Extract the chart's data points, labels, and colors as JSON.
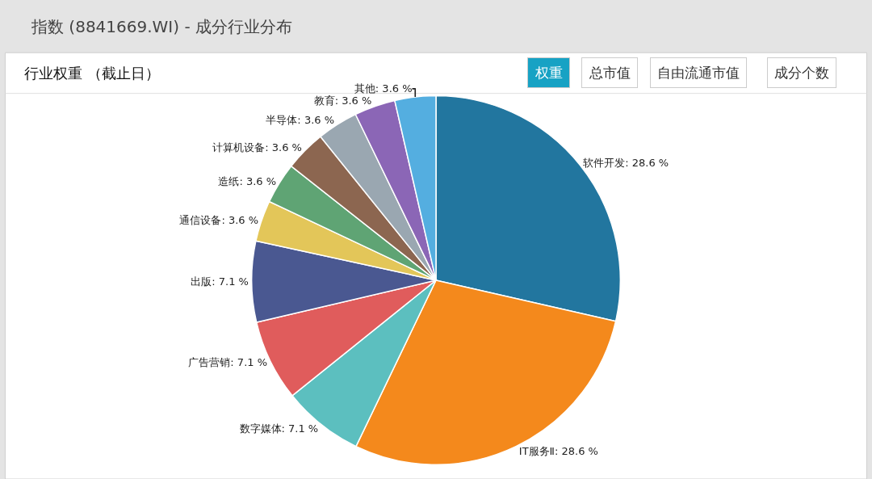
{
  "chart_data": {
    "type": "pie",
    "title": "指数 (8841669.WI) - 成分行业分布",
    "subtitle": "行业权重 （截止日）",
    "annotations": [
      "权重",
      "总市值",
      "自由流通市值",
      "成分个数"
    ],
    "categories": [
      "软件开发",
      "IT服务Ⅱ",
      "数字媒体",
      "广告营销",
      "出版",
      "通信设备",
      "造纸",
      "计算机设备",
      "半导体",
      "教育",
      "其他"
    ],
    "values": [
      28.6,
      28.6,
      7.1,
      7.1,
      7.1,
      3.6,
      3.6,
      3.6,
      3.6,
      3.6,
      3.6
    ],
    "value_labels": [
      "28.6 %",
      "28.6 %",
      "7.1 %",
      "7.1 %",
      "7.1 %",
      "3.6 %",
      "3.6 %",
      "3.6 %",
      "3.6 %",
      "3.6 %",
      "3.6 %"
    ],
    "colors": [
      "#22769f",
      "#f4891c",
      "#5cbfbf",
      "#e05c5c",
      "#4a5891",
      "#e3c659",
      "#5fa474",
      "#8c6650",
      "#9aa7b1",
      "#8b66b6",
      "#54aee0"
    ],
    "legend": false
  }
}
